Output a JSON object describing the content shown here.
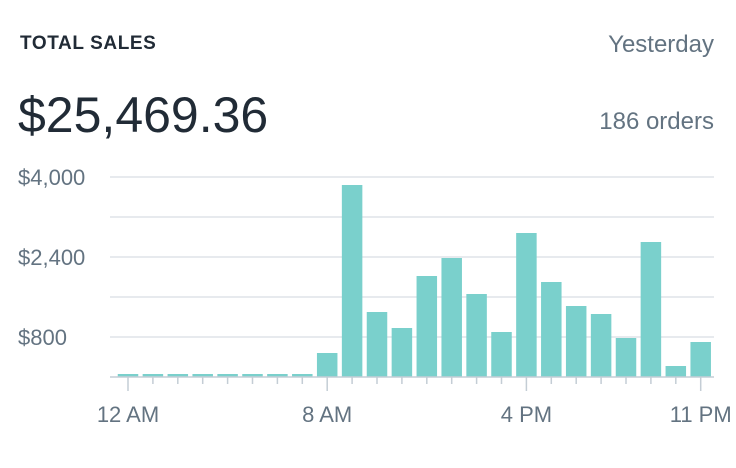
{
  "header": {
    "title": "TOTAL SALES",
    "period": "Yesterday",
    "amount": "$25,469.36",
    "orders": "186 orders"
  },
  "colors": {
    "bar": "#7ad0cc",
    "grid": "#dfe3e8",
    "axis": "#c4cdd5",
    "text": "#637381"
  },
  "chart_data": {
    "type": "bar",
    "title": "TOTAL SALES",
    "xlabel": "",
    "ylabel": "",
    "ylim": [
      0,
      4800
    ],
    "y_ticks": [
      800,
      2400,
      4000
    ],
    "y_tick_labels": [
      "$800",
      "$2,400",
      "$4,000"
    ],
    "gridlines": [
      800,
      1600,
      2400,
      3200,
      4000
    ],
    "grid": true,
    "categories": [
      "12 AM",
      "1 AM",
      "2 AM",
      "3 AM",
      "4 AM",
      "5 AM",
      "6 AM",
      "7 AM",
      "8 AM",
      "9 AM",
      "10 AM",
      "11 AM",
      "12 PM",
      "1 PM",
      "2 PM",
      "3 PM",
      "4 PM",
      "5 PM",
      "6 PM",
      "7 PM",
      "8 PM",
      "9 PM",
      "10 PM",
      "11 PM"
    ],
    "x_tick_labels": [
      {
        "index": 0,
        "label": "12 AM"
      },
      {
        "index": 8,
        "label": "8 AM"
      },
      {
        "index": 16,
        "label": "4 PM"
      },
      {
        "index": 23,
        "label": "11 PM"
      }
    ],
    "values": [
      60,
      60,
      60,
      60,
      60,
      60,
      60,
      60,
      480,
      3840,
      1300,
      980,
      2020,
      2380,
      1660,
      900,
      2880,
      1900,
      1420,
      1260,
      780,
      2700,
      220,
      700
    ]
  }
}
